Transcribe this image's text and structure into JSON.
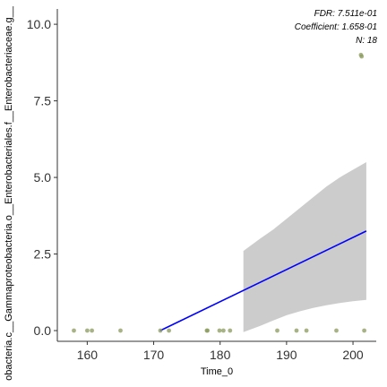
{
  "chart_data": {
    "type": "scatter",
    "xlabel": "Time_0",
    "ylabel": "obacteria.c__Gammaproteobacteria.o__Enterobacteriales.f__Enterobacteriaceae.g__",
    "xlim": [
      155.5,
      203.5
    ],
    "ylim": [
      -0.35,
      10.5
    ],
    "x_ticks": [
      160,
      170,
      180,
      190,
      200
    ],
    "y_ticks": [
      0.0,
      2.5,
      5.0,
      7.5,
      10.0
    ],
    "x_tick_labels": [
      "160",
      "170",
      "180",
      "190",
      "200"
    ],
    "y_tick_labels": [
      "0.0",
      "2.5",
      "5.0",
      "7.5",
      "10.0"
    ],
    "points": [
      {
        "x": 158,
        "y": 0
      },
      {
        "x": 160,
        "y": 0
      },
      {
        "x": 160.7,
        "y": 0
      },
      {
        "x": 165,
        "y": 0
      },
      {
        "x": 171,
        "y": 0
      },
      {
        "x": 172.3,
        "y": 0
      },
      {
        "x": 178,
        "y": 0
      },
      {
        "x": 178.1,
        "y": 0
      },
      {
        "x": 179.9,
        "y": 0
      },
      {
        "x": 180.5,
        "y": 0
      },
      {
        "x": 181.5,
        "y": 0
      },
      {
        "x": 188.6,
        "y": 0
      },
      {
        "x": 191.5,
        "y": 0
      },
      {
        "x": 193,
        "y": 0
      },
      {
        "x": 197.5,
        "y": 0
      },
      {
        "x": 201.7,
        "y": 0
      },
      {
        "x": 201.3,
        "y": 8.95
      },
      {
        "x": 201.2,
        "y": 9.0
      }
    ],
    "regression_line": {
      "x": [
        171,
        202
      ],
      "y": [
        0.0,
        3.25
      ]
    },
    "confidence_band": {
      "x": [
        183.5,
        186,
        188,
        190,
        192,
        194,
        196,
        198,
        200,
        202
      ],
      "lower": [
        -0.05,
        0.15,
        0.33,
        0.5,
        0.63,
        0.74,
        0.83,
        0.9,
        0.96,
        1.0
      ],
      "upper": [
        2.6,
        3.0,
        3.3,
        3.65,
        4.0,
        4.35,
        4.7,
        5.0,
        5.25,
        5.5
      ]
    },
    "annotations": [
      "FDR: 7.511e-01",
      "Coefficient: 1.658-01",
      "N: 18"
    ],
    "colors": {
      "points": "#8a9a5b",
      "line": "#0000ff",
      "band": "#cccccc",
      "axis": "#333333"
    }
  }
}
